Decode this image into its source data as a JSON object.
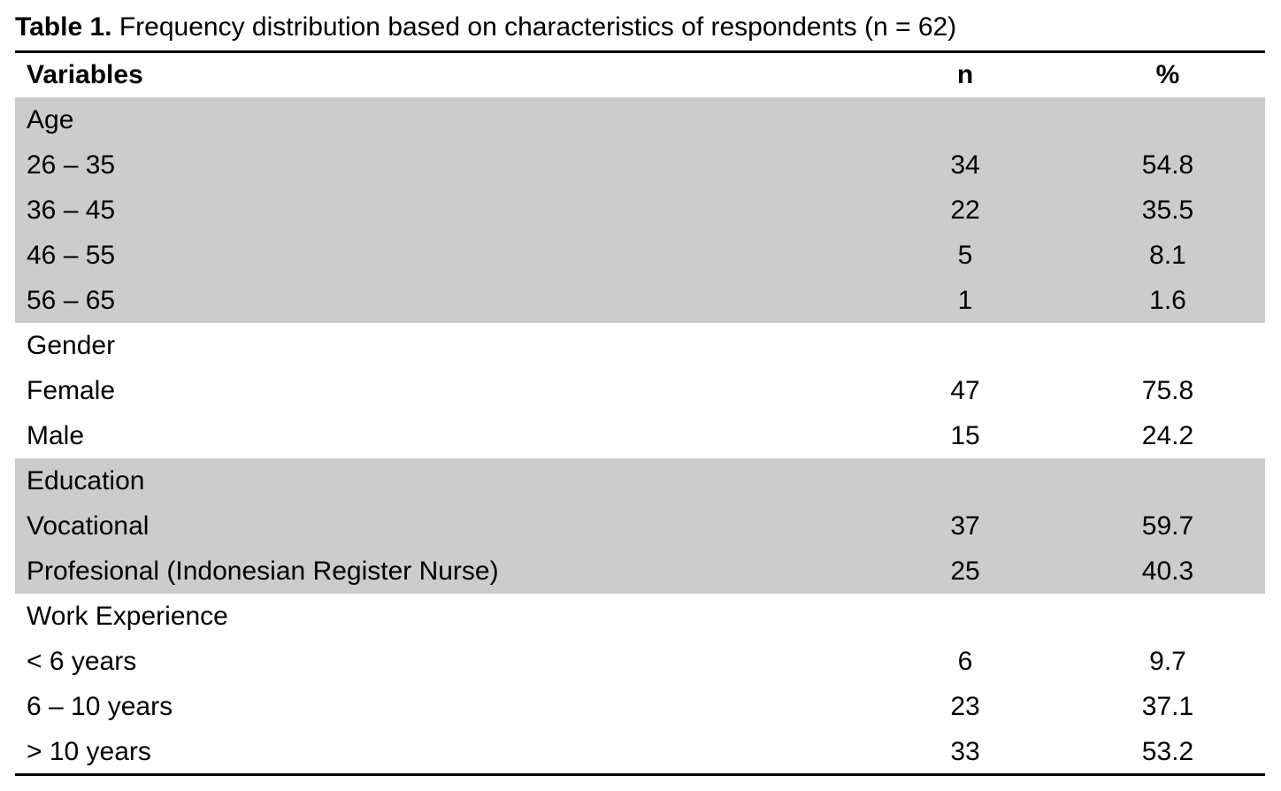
{
  "caption": {
    "label": "Table 1.",
    "text": "Frequency distribution based on characteristics of respondents (n = 62)"
  },
  "table": {
    "headers": [
      "Variables",
      "n",
      "%"
    ],
    "groups": [
      {
        "title": "Age",
        "rows": [
          [
            "26 – 35",
            34,
            54.8
          ],
          [
            "36 – 45",
            22,
            35.5
          ],
          [
            "46 – 55",
            5,
            8.1
          ],
          [
            "56 – 65",
            1,
            1.6
          ]
        ]
      },
      {
        "title": "Gender",
        "rows": [
          [
            "Female",
            47,
            75.8
          ],
          [
            "Male",
            15,
            24.2
          ]
        ]
      },
      {
        "title": "Education",
        "rows": [
          [
            "Vocational",
            37,
            59.7
          ],
          [
            "Profesional (Indonesian Register Nurse)",
            25,
            40.3
          ]
        ]
      },
      {
        "title": "Work Experience",
        "rows": [
          [
            "< 6 years",
            6,
            9.7
          ],
          [
            "6 – 10 years",
            23,
            37.1
          ],
          [
            "> 10 years",
            33,
            53.2
          ]
        ]
      }
    ]
  }
}
